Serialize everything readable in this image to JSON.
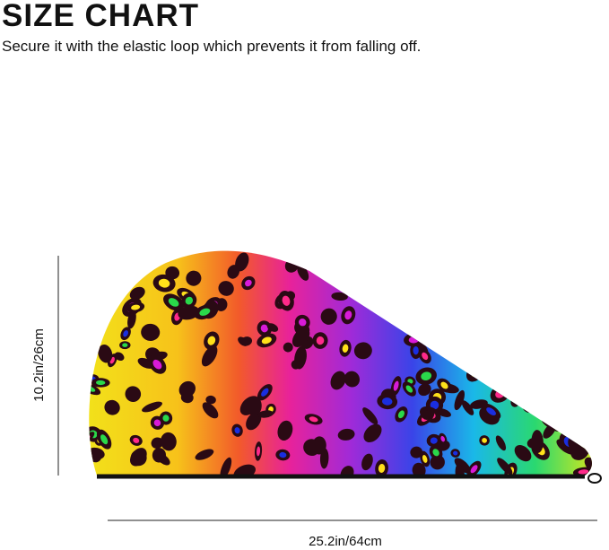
{
  "header": {
    "title": "SIZE CHART",
    "subtitle": "Secure it with the elastic loop which prevents it from falling off."
  },
  "dimensions": {
    "height": "10.2in/26cm",
    "width": "25.2in/64cm"
  }
}
